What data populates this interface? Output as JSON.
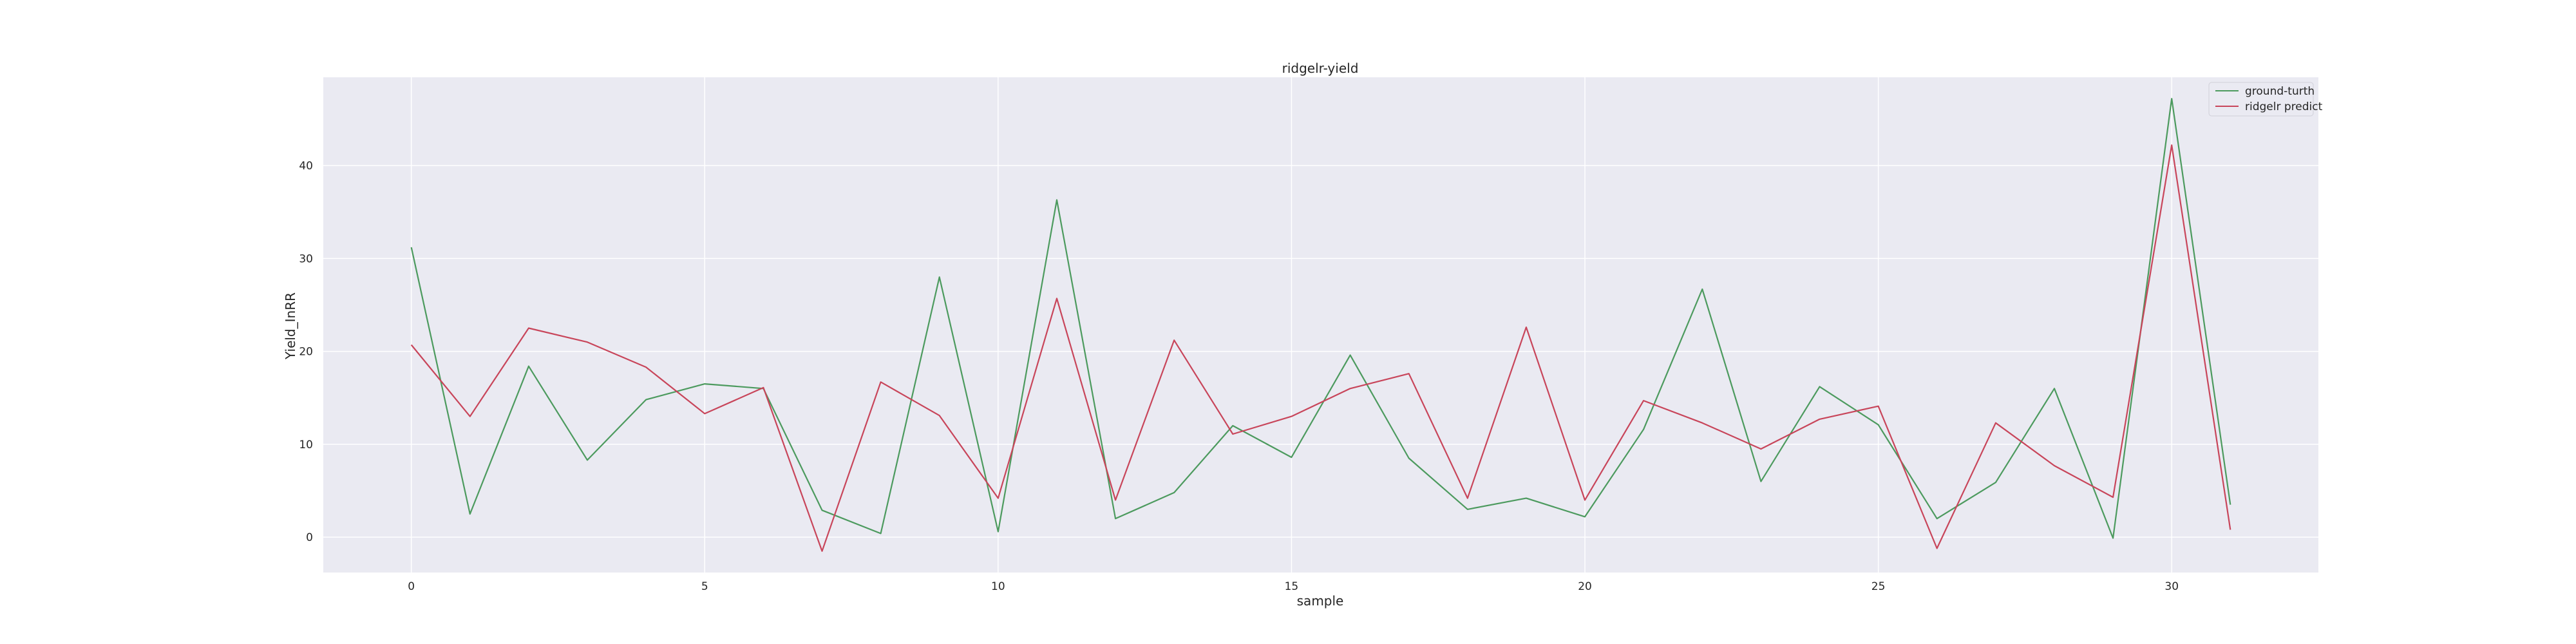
{
  "chart_data": {
    "type": "line",
    "title": "ridgelr-yield",
    "xlabel": "sample",
    "ylabel": "Yield_InRR",
    "xlim": [
      -1.5,
      32.5
    ],
    "ylim": [
      -3.8,
      49.5
    ],
    "xticks": [
      0,
      5,
      10,
      15,
      20,
      25,
      30
    ],
    "yticks": [
      0,
      10,
      20,
      30,
      40
    ],
    "grid": true,
    "legend_position": "top-right",
    "x": [
      0,
      1,
      2,
      3,
      4,
      5,
      6,
      7,
      8,
      9,
      10,
      11,
      12,
      13,
      14,
      15,
      16,
      17,
      18,
      19,
      20,
      21,
      22,
      23,
      24,
      25,
      26,
      27,
      28,
      29,
      30,
      31
    ],
    "series": [
      {
        "name": "ground-turth",
        "color": "#4c9a5e",
        "values": [
          31.2,
          2.5,
          18.4,
          8.3,
          14.8,
          16.5,
          16.0,
          2.9,
          0.4,
          28.0,
          0.6,
          36.3,
          2.0,
          4.8,
          12.0,
          8.6,
          19.6,
          8.5,
          3.0,
          4.2,
          2.2,
          11.6,
          26.7,
          6.0,
          16.2,
          12.1,
          2.0,
          5.9,
          16.0,
          -0.1,
          47.2,
          3.5
        ]
      },
      {
        "name": "ridgelr predict",
        "color": "#c8455a",
        "values": [
          20.7,
          13.0,
          22.5,
          21.0,
          18.3,
          13.3,
          16.1,
          -1.5,
          16.7,
          13.1,
          4.2,
          25.7,
          4.0,
          21.2,
          11.1,
          13.0,
          16.0,
          17.6,
          4.2,
          22.6,
          4.0,
          14.7,
          12.3,
          9.5,
          12.7,
          14.1,
          -1.2,
          12.3,
          7.7,
          4.3,
          42.2,
          0.8
        ]
      }
    ]
  }
}
